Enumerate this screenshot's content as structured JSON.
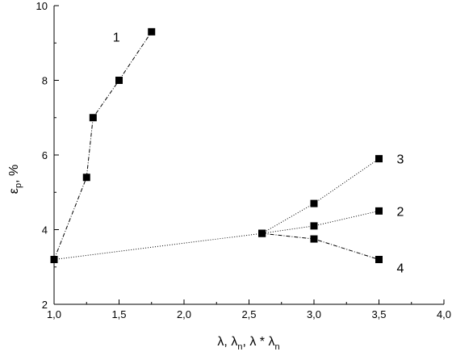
{
  "chart_data": {
    "type": "line",
    "title": "",
    "xlabel": {
      "base": "λ, λ",
      "sub1": "n",
      "mid": ", λ * λ",
      "sub2": "n"
    },
    "ylabel": {
      "base": "ε",
      "sub": "p",
      "unit": ", %"
    },
    "xlim": [
      1.0,
      4.0
    ],
    "ylim": [
      2,
      10
    ],
    "xticks": [
      1.0,
      1.5,
      2.0,
      2.5,
      3.0,
      3.5,
      4.0
    ],
    "xtick_labels": [
      "1,0",
      "1,5",
      "2,0",
      "2,5",
      "3,0",
      "3,5",
      "4,0"
    ],
    "yticks": [
      2,
      4,
      6,
      8,
      10
    ],
    "ytick_labels": [
      "2",
      "4",
      "6",
      "8",
      "10"
    ],
    "grid": false,
    "series": [
      {
        "name": "1",
        "points": [
          [
            1.0,
            3.2
          ],
          [
            1.25,
            5.4
          ],
          [
            1.3,
            7.0
          ],
          [
            1.5,
            8.0
          ],
          [
            1.75,
            9.3
          ]
        ]
      },
      {
        "name": "2",
        "points": [
          [
            1.0,
            3.2
          ],
          [
            2.6,
            3.9
          ],
          [
            3.0,
            4.1
          ],
          [
            3.5,
            4.5
          ]
        ]
      },
      {
        "name": "3",
        "points": [
          [
            2.6,
            3.9
          ],
          [
            3.0,
            4.7
          ],
          [
            3.5,
            5.9
          ]
        ]
      },
      {
        "name": "4",
        "points": [
          [
            2.6,
            3.9
          ],
          [
            3.0,
            3.75
          ],
          [
            3.5,
            3.2
          ]
        ]
      }
    ]
  }
}
